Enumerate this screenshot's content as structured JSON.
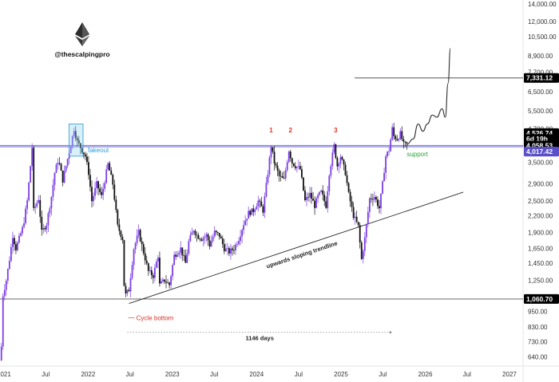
{
  "brand": {
    "handle": "@thescalpingpro",
    "logo_icon": "ethereum-logo-icon"
  },
  "chart_data": {
    "type": "candlestick",
    "y_scale": "log",
    "ylim": [
      590,
      14000
    ],
    "x_range": [
      "2020-12-15",
      "2027-03-01"
    ],
    "y_ticks": [
      {
        "value": 14000,
        "label": "14,000.00"
      },
      {
        "value": 12000,
        "label": "12,000.00"
      },
      {
        "value": 10500,
        "label": "10,500.00"
      },
      {
        "value": 8900,
        "label": "8,900.00"
      },
      {
        "value": 7700,
        "label": "7,700.00"
      },
      {
        "value": 6500,
        "label": "6,500.00"
      },
      {
        "value": 5500,
        "label": "5,500.00"
      },
      {
        "value": 4700,
        "label": "4,700.00"
      },
      {
        "value": 3500,
        "label": "3,500.00"
      },
      {
        "value": 2900,
        "label": "2,900.00"
      },
      {
        "value": 2500,
        "label": "2,500.00"
      },
      {
        "value": 2200,
        "label": "2,200.00"
      },
      {
        "value": 1900,
        "label": "1,900.00"
      },
      {
        "value": 1650,
        "label": "1,650.00"
      },
      {
        "value": 1450,
        "label": "1,450.00"
      },
      {
        "value": 1250,
        "label": "1,250.00"
      },
      {
        "value": 950,
        "label": "950.00"
      },
      {
        "value": 830,
        "label": "830.00"
      },
      {
        "value": 730,
        "label": "730.00"
      },
      {
        "value": 640,
        "label": "640.00"
      }
    ],
    "x_ticks": [
      {
        "date": "2021-01-01",
        "label": "2021"
      },
      {
        "date": "2021-07-01",
        "label": "Jul"
      },
      {
        "date": "2022-01-01",
        "label": "2022"
      },
      {
        "date": "2022-07-01",
        "label": "Jul"
      },
      {
        "date": "2023-01-01",
        "label": "2023"
      },
      {
        "date": "2023-07-01",
        "label": "Jul"
      },
      {
        "date": "2024-01-01",
        "label": "2024"
      },
      {
        "date": "2024-07-01",
        "label": "Jul"
      },
      {
        "date": "2025-01-01",
        "label": "2025"
      },
      {
        "date": "2025-07-01",
        "label": "Jul"
      },
      {
        "date": "2026-01-01",
        "label": "2026"
      },
      {
        "date": "2026-07-01",
        "label": "Jul"
      },
      {
        "date": "2027-01-01",
        "label": "2027"
      }
    ],
    "price_keypoints": [
      [
        "2020-12-21",
        620
      ],
      [
        "2020-12-28",
        700
      ],
      [
        "2021-01-04",
        1100
      ],
      [
        "2021-01-18",
        1250
      ],
      [
        "2021-02-01",
        1500
      ],
      [
        "2021-02-15",
        1850
      ],
      [
        "2021-03-01",
        1650
      ],
      [
        "2021-03-15",
        1800
      ],
      [
        "2021-04-01",
        2000
      ],
      [
        "2021-04-19",
        2500
      ],
      [
        "2021-05-03",
        3400
      ],
      [
        "2021-05-10",
        4000
      ],
      [
        "2021-05-17",
        2300
      ],
      [
        "2021-06-07",
        2550
      ],
      [
        "2021-06-21",
        1900
      ],
      [
        "2021-07-12",
        2050
      ],
      [
        "2021-08-02",
        2600
      ],
      [
        "2021-08-16",
        3200
      ],
      [
        "2021-09-01",
        3600
      ],
      [
        "2021-09-20",
        3000
      ],
      [
        "2021-10-04",
        3400
      ],
      [
        "2021-10-25",
        4100
      ],
      [
        "2021-11-08",
        4700
      ],
      [
        "2021-11-22",
        4200
      ],
      [
        "2021-12-06",
        4000
      ],
      [
        "2021-12-27",
        3700
      ],
      [
        "2022-01-10",
        3200
      ],
      [
        "2022-01-24",
        2500
      ],
      [
        "2022-02-14",
        2900
      ],
      [
        "2022-03-07",
        2600
      ],
      [
        "2022-04-04",
        3450
      ],
      [
        "2022-04-25",
        2900
      ],
      [
        "2022-05-16",
        2000
      ],
      [
        "2022-06-06",
        1800
      ],
      [
        "2022-06-13",
        1200
      ],
      [
        "2022-06-20",
        1100
      ],
      [
        "2022-07-04",
        1150
      ],
      [
        "2022-07-25",
        1650
      ],
      [
        "2022-08-15",
        1900
      ],
      [
        "2022-09-05",
        1600
      ],
      [
        "2022-09-26",
        1350
      ],
      [
        "2022-10-17",
        1300
      ],
      [
        "2022-11-07",
        1550
      ],
      [
        "2022-11-14",
        1200
      ],
      [
        "2022-12-05",
        1250
      ],
      [
        "2022-12-26",
        1200
      ],
      [
        "2023-01-16",
        1550
      ],
      [
        "2023-02-13",
        1650
      ],
      [
        "2023-03-06",
        1450
      ],
      [
        "2023-03-20",
        1750
      ],
      [
        "2023-04-10",
        1950
      ],
      [
        "2023-04-24",
        1850
      ],
      [
        "2023-05-15",
        1800
      ],
      [
        "2023-06-05",
        1850
      ],
      [
        "2023-06-19",
        1700
      ],
      [
        "2023-07-10",
        1900
      ],
      [
        "2023-07-31",
        1850
      ],
      [
        "2023-08-21",
        1650
      ],
      [
        "2023-09-11",
        1600
      ],
      [
        "2023-10-02",
        1650
      ],
      [
        "2023-10-23",
        1800
      ],
      [
        "2023-11-13",
        2050
      ],
      [
        "2023-12-04",
        2250
      ],
      [
        "2023-12-25",
        2300
      ],
      [
        "2024-01-15",
        2500
      ],
      [
        "2024-02-05",
        2300
      ],
      [
        "2024-02-26",
        3200
      ],
      [
        "2024-03-11",
        4050
      ],
      [
        "2024-03-25",
        3500
      ],
      [
        "2024-04-15",
        3100
      ],
      [
        "2024-05-06",
        3000
      ],
      [
        "2024-05-27",
        3900
      ],
      [
        "2024-06-10",
        3500
      ],
      [
        "2024-06-24",
        3400
      ],
      [
        "2024-07-15",
        3300
      ],
      [
        "2024-08-05",
        2500
      ],
      [
        "2024-08-26",
        2650
      ],
      [
        "2024-09-16",
        2400
      ],
      [
        "2024-09-30",
        2600
      ],
      [
        "2024-10-14",
        2700
      ],
      [
        "2024-11-04",
        2400
      ],
      [
        "2024-11-18",
        3200
      ],
      [
        "2024-12-09",
        4050
      ],
      [
        "2024-12-23",
        3400
      ],
      [
        "2025-01-06",
        3700
      ],
      [
        "2025-01-27",
        3200
      ],
      [
        "2025-02-10",
        2650
      ],
      [
        "2025-03-03",
        2200
      ],
      [
        "2025-03-24",
        2000
      ],
      [
        "2025-04-07",
        1500
      ],
      [
        "2025-04-21",
        1800
      ],
      [
        "2025-05-12",
        2550
      ],
      [
        "2025-06-02",
        2600
      ],
      [
        "2025-06-23",
        2350
      ],
      [
        "2025-07-07",
        2900
      ],
      [
        "2025-07-21",
        3700
      ],
      [
        "2025-08-04",
        3900
      ],
      [
        "2025-08-18",
        4700
      ],
      [
        "2025-08-25",
        4400
      ],
      [
        "2025-09-08",
        4300
      ],
      [
        "2025-09-22",
        4500
      ],
      [
        "2025-10-06",
        4100
      ],
      [
        "2025-10-13",
        4100
      ]
    ],
    "projection_path": [
      [
        "2025-10-13",
        4100
      ],
      [
        "2025-11-10",
        4300
      ],
      [
        "2025-12-01",
        4900
      ],
      [
        "2025-12-22",
        4600
      ],
      [
        "2026-01-10",
        4900
      ],
      [
        "2026-02-01",
        5300
      ],
      [
        "2026-02-20",
        5200
      ],
      [
        "2026-03-15",
        5600
      ],
      [
        "2026-03-29",
        5200
      ],
      [
        "2026-04-10",
        7000
      ],
      [
        "2026-04-20",
        9500
      ]
    ],
    "horizontal_lines": [
      {
        "name": "resistance-support-line",
        "y": 4058.53,
        "x_from": "2020-12-15",
        "x_to": "2027-03-01",
        "color": "#1a1a1a"
      },
      {
        "name": "blue-zone-line",
        "y": 4017.42,
        "x_from": "2020-12-15",
        "x_to": "2027-03-01",
        "color": "#4a52d6"
      },
      {
        "name": "cycle-bottom-line",
        "y": 1060.7,
        "x_from": "2020-12-15",
        "x_to": "2027-03-01",
        "color": "#555555"
      },
      {
        "name": "target-line",
        "y": 7331.12,
        "x_from": "2025-03-01",
        "x_to": "2027-03-01",
        "color": "#555555"
      }
    ],
    "trendline": {
      "from": [
        "2022-06-27",
        1020
      ],
      "to": [
        "2026-06-15",
        2700
      ],
      "label": "upwards sloping trendline"
    },
    "price_labels": [
      {
        "value": "4,526.74",
        "price": 4526.74,
        "bg": "#000000"
      },
      {
        "value": "6d 19h",
        "price": 4300,
        "bg": "#000000"
      },
      {
        "value": "4,058.53",
        "price": 4058.53,
        "bg": "#000000"
      },
      {
        "value": "4,017.42",
        "price": 3850,
        "bg": "#5a4fc9"
      },
      {
        "value": "7,331.12",
        "price": 7331.12,
        "bg": "#000000"
      },
      {
        "value": "1,060.70",
        "price": 1060.7,
        "bg": "#000000"
      }
    ],
    "annotations": {
      "fakeout": {
        "text": "fakeout",
        "color": "#2a9bd8",
        "box_from": [
          "2021-10-10",
          4900
        ],
        "box_to": [
          "2021-12-10",
          3700
        ]
      },
      "marker_1": {
        "text": "1",
        "color": "#d9332a",
        "date": "2024-03-04",
        "price": 4550
      },
      "marker_2": {
        "text": "2",
        "color": "#d9332a",
        "date": "2024-05-27",
        "price": 4550
      },
      "marker_3": {
        "text": "3",
        "color": "#d9332a",
        "date": "2024-12-09",
        "price": 4550
      },
      "support": {
        "text": "support",
        "color": "#2aa63a",
        "date": "2025-09-22",
        "price": 3800
      },
      "cycle_bottom": {
        "text": "Cycle bottom",
        "color": "#d9332a",
        "date": "2022-07-01",
        "price": 880
      },
      "days": {
        "text": "1146 days",
        "color": "#222222",
        "from": "2022-06-20",
        "to": "2025-08-10",
        "price": 625
      }
    }
  }
}
